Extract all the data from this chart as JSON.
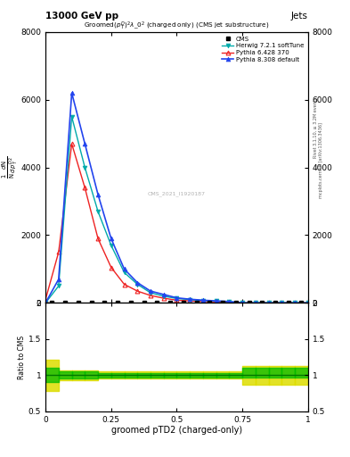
{
  "title": "13000 GeV pp",
  "title_right": "Jets",
  "xlabel": "groomed pTD2 (charged-only)",
  "watermark": "CMS_2021_I1920187",
  "herwig_x": [
    0.0,
    0.05,
    0.1,
    0.15,
    0.2,
    0.25,
    0.3,
    0.35,
    0.4,
    0.45,
    0.5,
    0.55,
    0.6,
    0.65,
    0.7,
    0.75,
    0.8,
    0.85,
    0.9,
    0.95,
    1.0
  ],
  "herwig_y": [
    0,
    500,
    5500,
    4000,
    2700,
    1700,
    900,
    550,
    300,
    200,
    130,
    100,
    70,
    50,
    40,
    0,
    0,
    0,
    0,
    0,
    0
  ],
  "pythia6_x": [
    0.0,
    0.05,
    0.1,
    0.15,
    0.2,
    0.25,
    0.3,
    0.35,
    0.4,
    0.45,
    0.5,
    0.55,
    0.6,
    0.65,
    0.7,
    0.75,
    0.8,
    0.85,
    0.9,
    0.95,
    1.0
  ],
  "pythia6_y": [
    100,
    1500,
    4700,
    3400,
    1900,
    1050,
    550,
    350,
    220,
    140,
    80,
    60,
    40,
    30,
    20,
    0,
    0,
    0,
    0,
    0,
    0
  ],
  "pythia8_x": [
    0.0,
    0.05,
    0.1,
    0.15,
    0.2,
    0.25,
    0.3,
    0.35,
    0.4,
    0.45,
    0.5,
    0.55,
    0.6,
    0.65,
    0.7,
    0.75,
    0.8,
    0.85,
    0.9,
    0.95,
    1.0
  ],
  "pythia8_y": [
    0,
    700,
    6200,
    4700,
    3200,
    1900,
    1000,
    600,
    350,
    250,
    150,
    110,
    80,
    60,
    40,
    0,
    0,
    0,
    0,
    0,
    0
  ],
  "cms_x": [
    0.025,
    0.075,
    0.125,
    0.175,
    0.225,
    0.275,
    0.325,
    0.375,
    0.425,
    0.475,
    0.525,
    0.575,
    0.625,
    0.675,
    0.725,
    0.775,
    0.825,
    0.875,
    0.925,
    0.975
  ],
  "cms_y": [
    0,
    0,
    0,
    0,
    0,
    0,
    0,
    0,
    0,
    0,
    0,
    0,
    0,
    0,
    0,
    0,
    0,
    0,
    0,
    0
  ],
  "ylim": [
    0,
    8000
  ],
  "yticks": [
    0,
    2000,
    4000,
    6000,
    8000
  ],
  "xlim": [
    0,
    1
  ],
  "ratio_ylim": [
    0.5,
    2.0
  ],
  "ratio_yticks": [
    0.5,
    1.0,
    1.5,
    2.0
  ],
  "herwig_color": "#00AAAA",
  "pythia6_color": "#EE2222",
  "pythia8_color": "#2244EE",
  "cms_color": "#000000",
  "green_color": "#00BB00",
  "yellow_color": "#DDDD00",
  "ratio_bin_edges": [
    0.0,
    0.05,
    0.1,
    0.15,
    0.2,
    0.25,
    0.3,
    0.35,
    0.4,
    0.45,
    0.5,
    0.55,
    0.6,
    0.65,
    0.7,
    0.75,
    0.8,
    0.85,
    0.9,
    0.95,
    1.0
  ],
  "ratio_green_lo": [
    0.9,
    0.95,
    0.95,
    0.95,
    0.97,
    0.97,
    0.97,
    0.97,
    0.97,
    0.97,
    0.97,
    0.97,
    0.97,
    0.97,
    0.97,
    0.97,
    0.97,
    0.97,
    0.97,
    0.97
  ],
  "ratio_green_hi": [
    1.1,
    1.05,
    1.05,
    1.05,
    1.03,
    1.03,
    1.03,
    1.03,
    1.03,
    1.03,
    1.03,
    1.03,
    1.03,
    1.03,
    1.03,
    1.1,
    1.1,
    1.1,
    1.1,
    1.1
  ],
  "ratio_yellow_lo": [
    0.78,
    0.93,
    0.93,
    0.93,
    0.95,
    0.95,
    0.95,
    0.95,
    0.95,
    0.95,
    0.95,
    0.95,
    0.95,
    0.95,
    0.95,
    0.87,
    0.87,
    0.87,
    0.87,
    0.87
  ],
  "ratio_yellow_hi": [
    1.22,
    1.07,
    1.07,
    1.07,
    1.05,
    1.05,
    1.05,
    1.05,
    1.05,
    1.05,
    1.05,
    1.05,
    1.05,
    1.05,
    1.05,
    1.13,
    1.13,
    1.13,
    1.13,
    1.13
  ]
}
